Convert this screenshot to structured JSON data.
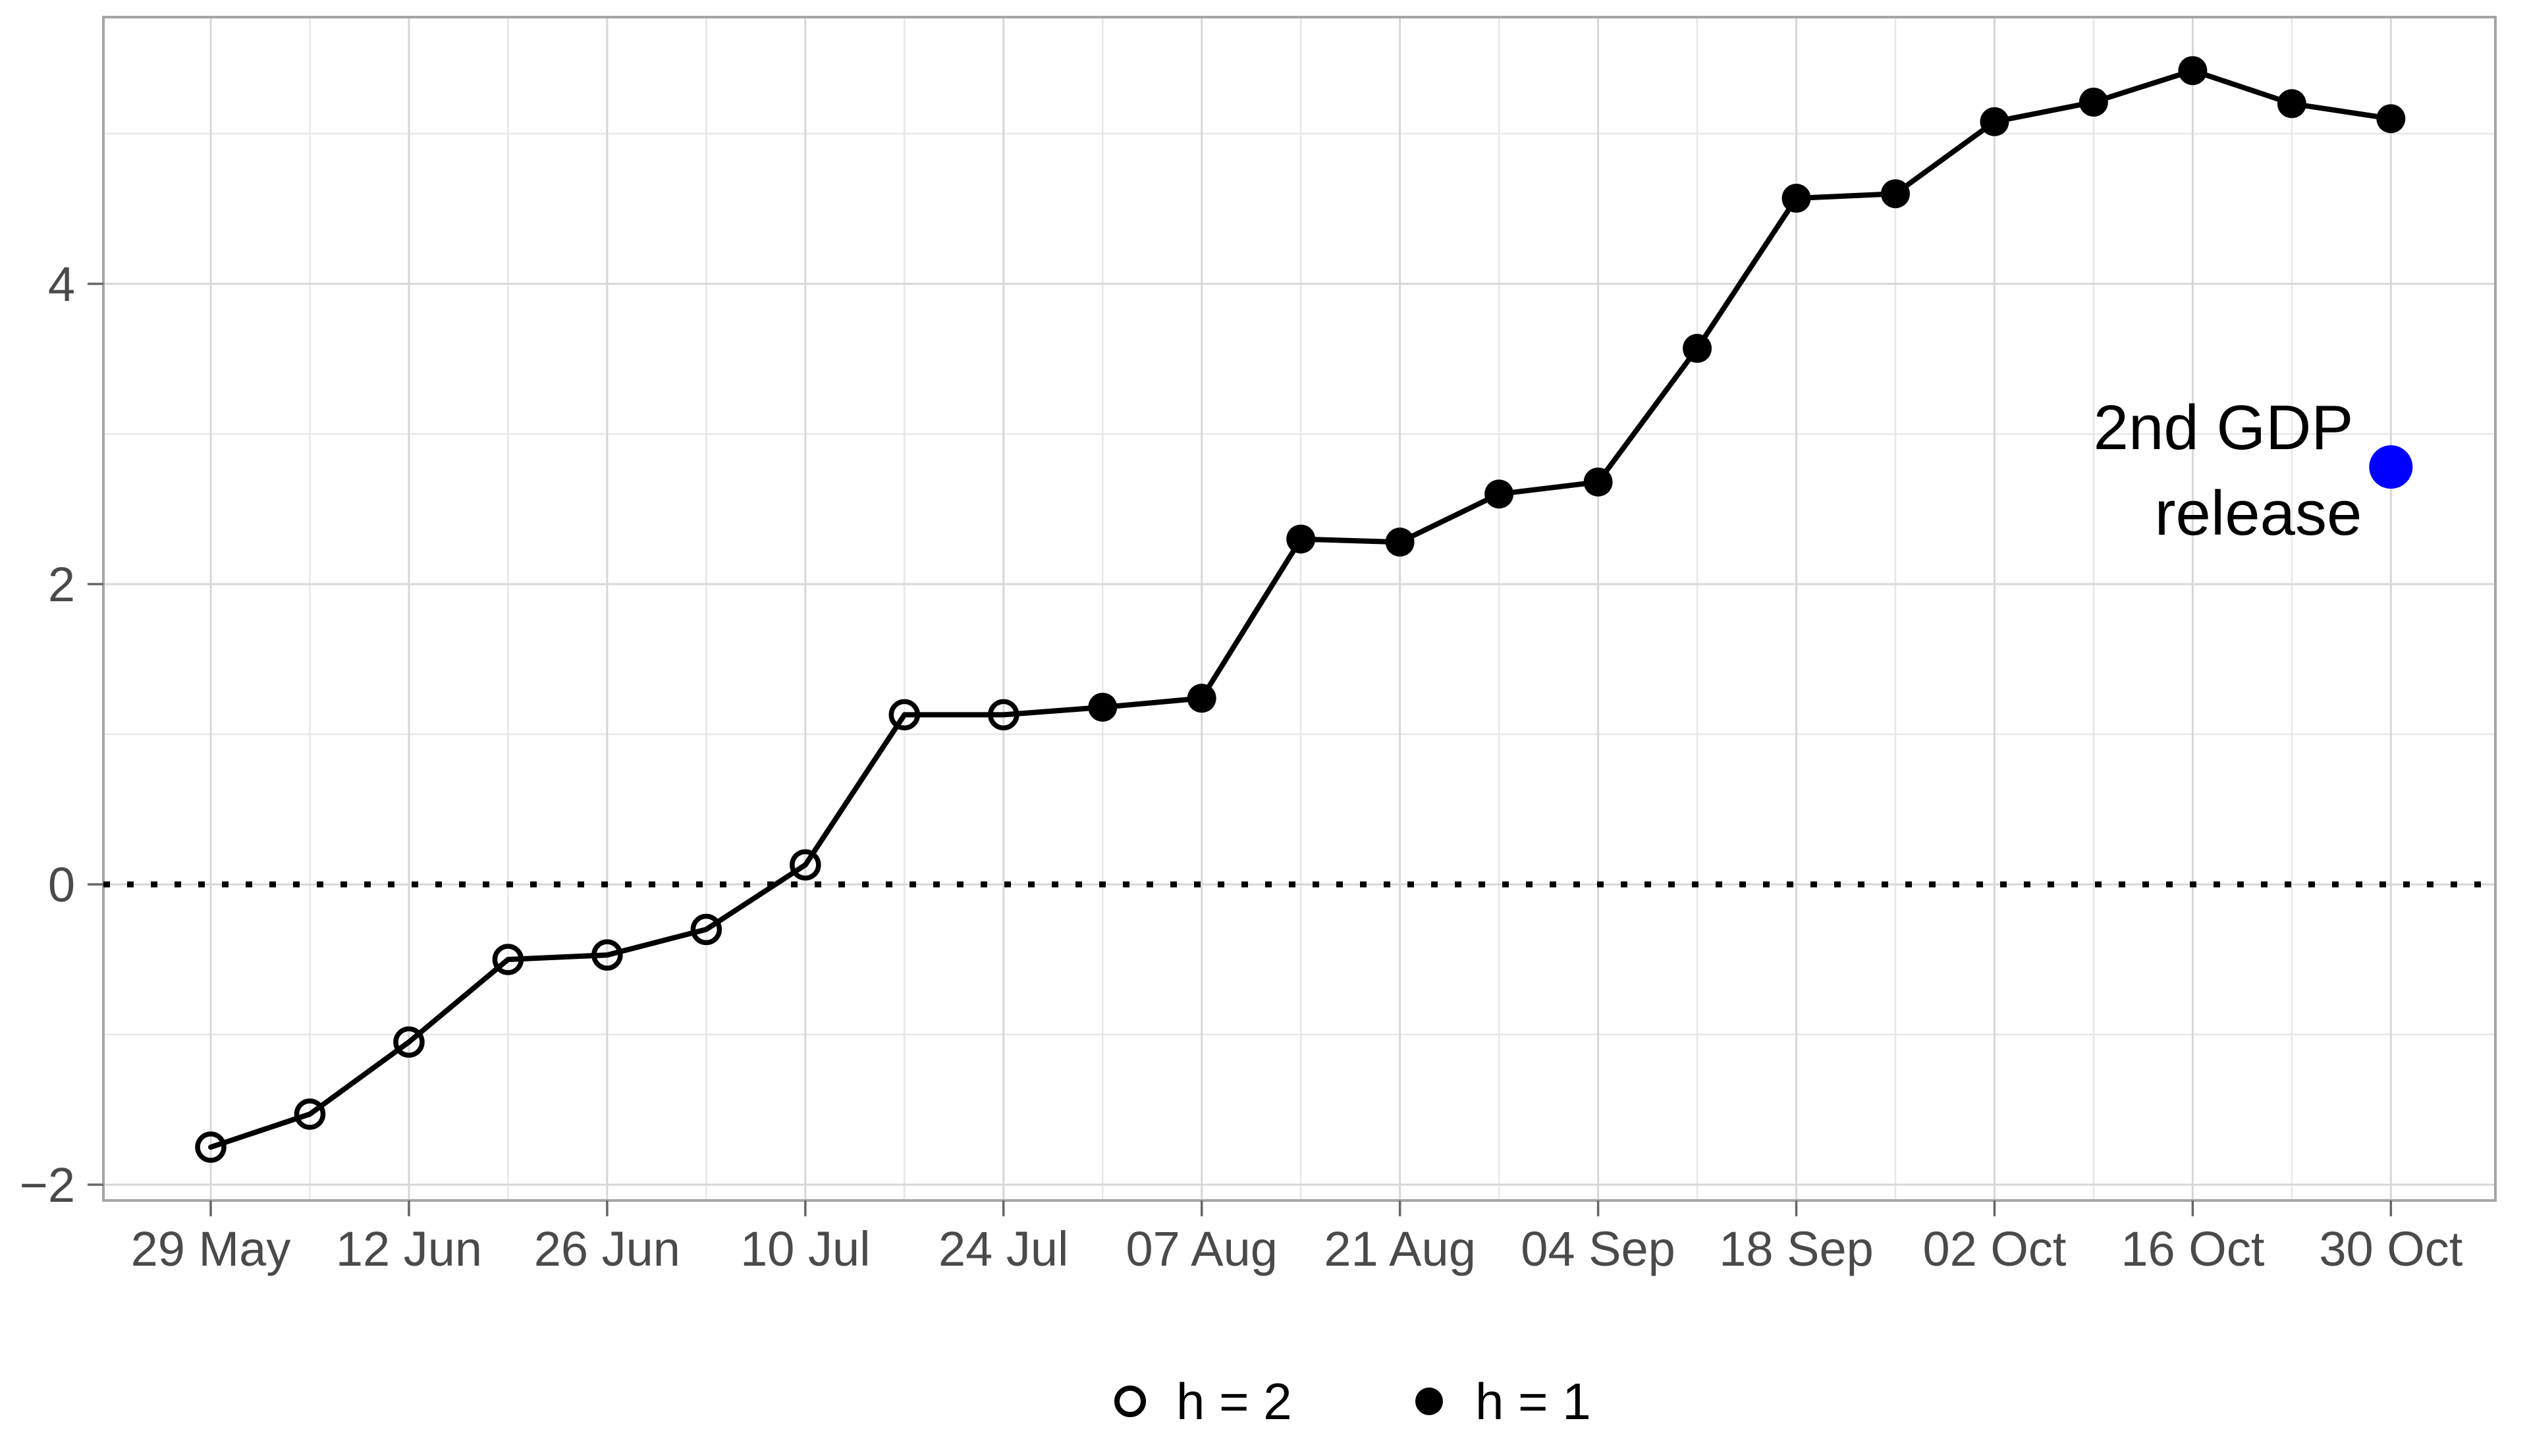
{
  "chart_data": {
    "type": "line",
    "title": "",
    "xlabel": "",
    "ylabel": "",
    "x_tick_labels": [
      "29 May",
      "12 Jun",
      "26 Jun",
      "10 Jul",
      "24 Jul",
      "07 Aug",
      "21 Aug",
      "04 Sep",
      "18 Sep",
      "02 Oct",
      "16 Oct",
      "30 Oct"
    ],
    "y_tick_labels": [
      "4",
      "2",
      "0",
      "−2"
    ],
    "y_tick_values": [
      4,
      2,
      0,
      -2
    ],
    "y_minor_values": [
      5,
      3,
      1,
      -1
    ],
    "ylim": [
      -2.11,
      5.79
    ],
    "grid": true,
    "legend_position": "bottom-center",
    "points": [
      {
        "date": "29 May",
        "value": -1.75,
        "h": 2
      },
      {
        "date": "05 Jun",
        "value": -1.53,
        "h": 2
      },
      {
        "date": "12 Jun",
        "value": -1.05,
        "h": 2
      },
      {
        "date": "19 Jun",
        "value": -0.5,
        "h": 2
      },
      {
        "date": "26 Jun",
        "value": -0.47,
        "h": 2
      },
      {
        "date": "03 Jul",
        "value": -0.3,
        "h": 2
      },
      {
        "date": "10 Jul",
        "value": 0.13,
        "h": 2
      },
      {
        "date": "17 Jul",
        "value": 1.13,
        "h": 2
      },
      {
        "date": "24 Jul",
        "value": 1.13,
        "h": 2
      },
      {
        "date": "31 Jul",
        "value": 1.18,
        "h": 1
      },
      {
        "date": "07 Aug",
        "value": 1.24,
        "h": 1
      },
      {
        "date": "14 Aug",
        "value": 2.3,
        "h": 1
      },
      {
        "date": "21 Aug",
        "value": 2.28,
        "h": 1
      },
      {
        "date": "28 Aug",
        "value": 2.6,
        "h": 1
      },
      {
        "date": "04 Sep",
        "value": 2.68,
        "h": 1
      },
      {
        "date": "11 Sep",
        "value": 3.57,
        "h": 1
      },
      {
        "date": "18 Sep",
        "value": 4.57,
        "h": 1
      },
      {
        "date": "25 Sep",
        "value": 4.6,
        "h": 1
      },
      {
        "date": "02 Oct",
        "value": 5.08,
        "h": 1
      },
      {
        "date": "09 Oct",
        "value": 5.21,
        "h": 1
      },
      {
        "date": "16 Oct",
        "value": 5.42,
        "h": 1
      },
      {
        "date": "23 Oct",
        "value": 5.2,
        "h": 1
      },
      {
        "date": "30 Oct",
        "value": 5.1,
        "h": 1
      }
    ],
    "zero_line": {
      "value": 0,
      "style": "dotted",
      "color": "#000000"
    },
    "annotation": {
      "line1": "2nd GDP",
      "line2": "release",
      "point": {
        "date": "30 Oct",
        "value": 2.78
      },
      "color": "#0000FF"
    },
    "legend": {
      "items": [
        {
          "label": "h = 2",
          "marker": "open-circle"
        },
        {
          "label": "h = 1",
          "marker": "filled-circle"
        }
      ]
    },
    "colors": {
      "line": "#000000",
      "grid_major": "#D7D7D7",
      "grid_minor": "#E7E7E7",
      "panel_border": "#A5A5A5",
      "axis_text": "#4A4A4A",
      "tick": "#666666",
      "highlight": "#0000FF",
      "background": "#FFFFFF"
    }
  }
}
